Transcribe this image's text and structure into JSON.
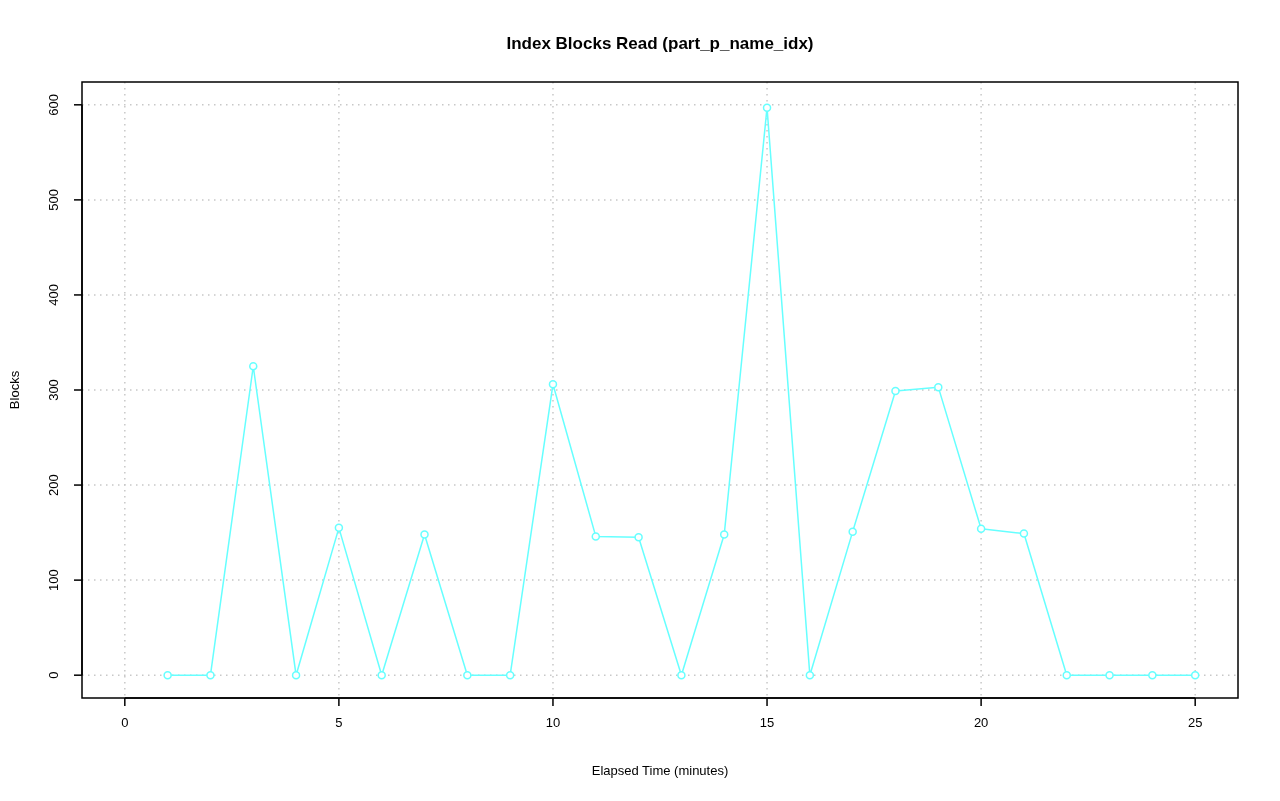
{
  "chart_data": {
    "type": "line",
    "title": "Index Blocks Read (part_p_name_idx)",
    "xlabel": "Elapsed Time (minutes)",
    "ylabel": "Blocks",
    "x": [
      1,
      2,
      3,
      4,
      5,
      6,
      7,
      8,
      9,
      10,
      11,
      12,
      13,
      14,
      15,
      16,
      17,
      18,
      19,
      20,
      21,
      22,
      23,
      24,
      25
    ],
    "series": [
      {
        "color": "#66ffff",
        "values": [
          0,
          0,
          325,
          0,
          155,
          0,
          148,
          0,
          0,
          306,
          146,
          145,
          0,
          148,
          597,
          0,
          151,
          299,
          303,
          154,
          149,
          0,
          0,
          0,
          0
        ]
      }
    ],
    "xlim": [
      -1,
      26
    ],
    "ylim": [
      -24,
      624
    ],
    "xticks": [
      0,
      5,
      10,
      15,
      20,
      25
    ],
    "yticks": [
      0,
      100,
      200,
      300,
      400,
      500,
      600
    ],
    "grid": true,
    "marker": "circle",
    "line_style": "solid"
  }
}
